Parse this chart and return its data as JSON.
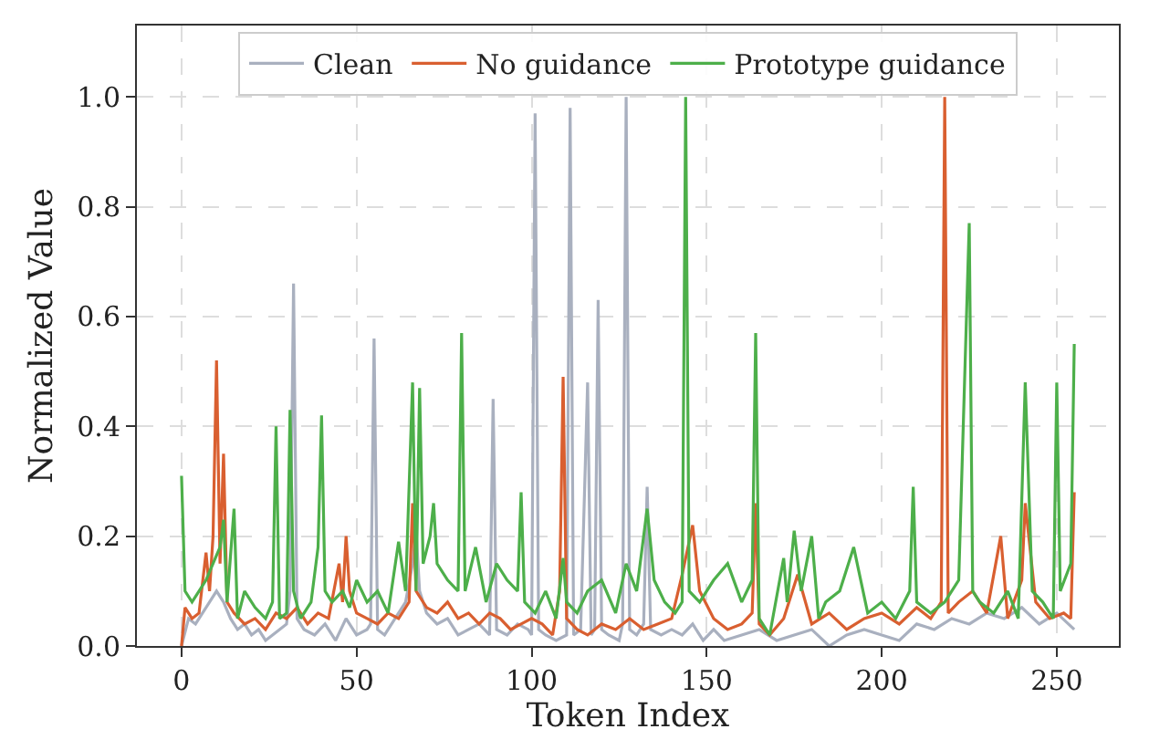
{
  "chart_data": {
    "type": "line",
    "xlabel": "Token Index",
    "ylabel": "Normalized Value",
    "xlim": [
      -12.75,
      267.75
    ],
    "xticks": [
      0,
      50,
      100,
      150,
      200,
      250
    ],
    "ylim": [
      0,
      1.13
    ],
    "yticks": [
      {
        "value": 0,
        "label": "0.0"
      },
      {
        "value": 0.2,
        "label": "0.2"
      },
      {
        "value": 0.4,
        "label": "0.4"
      },
      {
        "value": 0.6,
        "label": "0.6"
      },
      {
        "value": 0.8,
        "label": "0.8"
      },
      {
        "value": 1.0,
        "label": "1.0"
      }
    ],
    "grid": true,
    "legend": "top",
    "marker": "none",
    "line_style": "solid",
    "series": [
      {
        "name": "Clean",
        "color": "#a9b0bf",
        "x": [
          0,
          2,
          4,
          6,
          8,
          10,
          12,
          14,
          16,
          18,
          20,
          22,
          24,
          26,
          28,
          30,
          31,
          32,
          33,
          35,
          38,
          41,
          44,
          47,
          50,
          53,
          54,
          55,
          56,
          58,
          61,
          64,
          66,
          67,
          68,
          70,
          73,
          76,
          79,
          82,
          85,
          88,
          89,
          90,
          93,
          96,
          99,
          100,
          101,
          102,
          104,
          107,
          110,
          111,
          112,
          114,
          116,
          117,
          118,
          119,
          120,
          122,
          125,
          126,
          127,
          128,
          130,
          132,
          133,
          134,
          137,
          140,
          143,
          146,
          149,
          152,
          155,
          160,
          165,
          170,
          175,
          180,
          185,
          190,
          195,
          200,
          205,
          210,
          215,
          220,
          225,
          230,
          235,
          240,
          245,
          250,
          255
        ],
        "values": [
          0.0,
          0.05,
          0.04,
          0.06,
          0.08,
          0.1,
          0.08,
          0.05,
          0.03,
          0.04,
          0.02,
          0.03,
          0.01,
          0.02,
          0.03,
          0.04,
          0.1,
          0.66,
          0.05,
          0.03,
          0.02,
          0.04,
          0.01,
          0.05,
          0.02,
          0.03,
          0.04,
          0.56,
          0.03,
          0.02,
          0.05,
          0.08,
          0.15,
          0.21,
          0.1,
          0.06,
          0.04,
          0.05,
          0.02,
          0.03,
          0.04,
          0.02,
          0.45,
          0.03,
          0.02,
          0.04,
          0.03,
          0.02,
          0.97,
          0.03,
          0.02,
          0.01,
          0.02,
          0.98,
          0.02,
          0.03,
          0.48,
          0.02,
          0.03,
          0.63,
          0.03,
          0.02,
          0.01,
          0.04,
          1.0,
          0.03,
          0.02,
          0.04,
          0.29,
          0.03,
          0.02,
          0.03,
          0.02,
          0.04,
          0.01,
          0.03,
          0.01,
          0.02,
          0.03,
          0.01,
          0.02,
          0.03,
          0.0,
          0.02,
          0.03,
          0.02,
          0.01,
          0.04,
          0.03,
          0.05,
          0.04,
          0.06,
          0.05,
          0.07,
          0.04,
          0.06,
          0.03
        ]
      },
      {
        "name": "No guidance",
        "color": "#d95f30",
        "x": [
          0,
          1,
          3,
          5,
          7,
          8,
          9,
          10,
          11,
          12,
          13,
          15,
          18,
          21,
          24,
          27,
          30,
          33,
          36,
          39,
          42,
          45,
          46,
          47,
          48,
          50,
          53,
          56,
          59,
          62,
          65,
          66,
          67,
          70,
          73,
          76,
          79,
          82,
          85,
          88,
          91,
          94,
          97,
          100,
          103,
          106,
          108,
          109,
          110,
          113,
          116,
          120,
          124,
          128,
          132,
          136,
          140,
          143,
          146,
          148,
          152,
          156,
          160,
          163,
          164,
          165,
          168,
          172,
          176,
          180,
          185,
          190,
          195,
          200,
          205,
          210,
          214,
          217,
          218,
          219,
          222,
          226,
          230,
          234,
          236,
          240,
          241,
          244,
          248,
          252,
          254,
          255
        ],
        "values": [
          0.0,
          0.07,
          0.05,
          0.06,
          0.17,
          0.1,
          0.2,
          0.52,
          0.15,
          0.35,
          0.08,
          0.06,
          0.04,
          0.05,
          0.03,
          0.06,
          0.05,
          0.07,
          0.04,
          0.06,
          0.05,
          0.15,
          0.08,
          0.2,
          0.1,
          0.06,
          0.05,
          0.04,
          0.06,
          0.05,
          0.08,
          0.26,
          0.1,
          0.07,
          0.06,
          0.08,
          0.05,
          0.06,
          0.04,
          0.06,
          0.05,
          0.03,
          0.04,
          0.05,
          0.04,
          0.02,
          0.1,
          0.49,
          0.05,
          0.03,
          0.02,
          0.04,
          0.03,
          0.05,
          0.03,
          0.04,
          0.05,
          0.13,
          0.22,
          0.1,
          0.05,
          0.03,
          0.04,
          0.06,
          0.26,
          0.04,
          0.02,
          0.05,
          0.13,
          0.04,
          0.06,
          0.03,
          0.05,
          0.06,
          0.04,
          0.07,
          0.05,
          0.08,
          1.0,
          0.06,
          0.08,
          0.1,
          0.06,
          0.2,
          0.05,
          0.12,
          0.26,
          0.08,
          0.05,
          0.06,
          0.05,
          0.28
        ]
      },
      {
        "name": "Prototype guidance",
        "color": "#4daf4a",
        "x": [
          0,
          1,
          3,
          5,
          7,
          9,
          11,
          12,
          13,
          15,
          16,
          18,
          21,
          24,
          26,
          27,
          28,
          30,
          31,
          32,
          34,
          37,
          39,
          40,
          41,
          43,
          46,
          48,
          50,
          53,
          56,
          59,
          62,
          64,
          66,
          67,
          68,
          69,
          71,
          72,
          73,
          76,
          79,
          80,
          81,
          84,
          87,
          90,
          93,
          96,
          97,
          98,
          101,
          104,
          107,
          109,
          110,
          113,
          116,
          120,
          124,
          127,
          130,
          133,
          135,
          138,
          141,
          143,
          144,
          145,
          148,
          152,
          156,
          160,
          163,
          164,
          165,
          168,
          172,
          173,
          175,
          177,
          180,
          182,
          184,
          188,
          192,
          196,
          200,
          204,
          208,
          209,
          210,
          214,
          218,
          222,
          225,
          226,
          228,
          232,
          236,
          239,
          241,
          243,
          246,
          249,
          250,
          251,
          254,
          255
        ],
        "values": [
          0.31,
          0.1,
          0.08,
          0.1,
          0.12,
          0.15,
          0.18,
          0.23,
          0.08,
          0.25,
          0.05,
          0.1,
          0.07,
          0.05,
          0.08,
          0.4,
          0.05,
          0.06,
          0.43,
          0.1,
          0.05,
          0.08,
          0.18,
          0.42,
          0.1,
          0.08,
          0.1,
          0.07,
          0.12,
          0.08,
          0.1,
          0.06,
          0.19,
          0.1,
          0.48,
          0.1,
          0.47,
          0.15,
          0.2,
          0.26,
          0.15,
          0.12,
          0.1,
          0.57,
          0.1,
          0.18,
          0.08,
          0.15,
          0.12,
          0.1,
          0.28,
          0.08,
          0.06,
          0.1,
          0.05,
          0.16,
          0.08,
          0.06,
          0.1,
          0.12,
          0.06,
          0.15,
          0.1,
          0.25,
          0.12,
          0.08,
          0.06,
          0.08,
          1.0,
          0.1,
          0.08,
          0.12,
          0.15,
          0.08,
          0.12,
          0.57,
          0.05,
          0.02,
          0.16,
          0.08,
          0.21,
          0.1,
          0.2,
          0.05,
          0.08,
          0.1,
          0.18,
          0.06,
          0.08,
          0.05,
          0.1,
          0.29,
          0.08,
          0.06,
          0.08,
          0.12,
          0.77,
          0.1,
          0.08,
          0.06,
          0.1,
          0.05,
          0.48,
          0.1,
          0.08,
          0.05,
          0.48,
          0.1,
          0.15,
          0.55
        ]
      }
    ]
  }
}
